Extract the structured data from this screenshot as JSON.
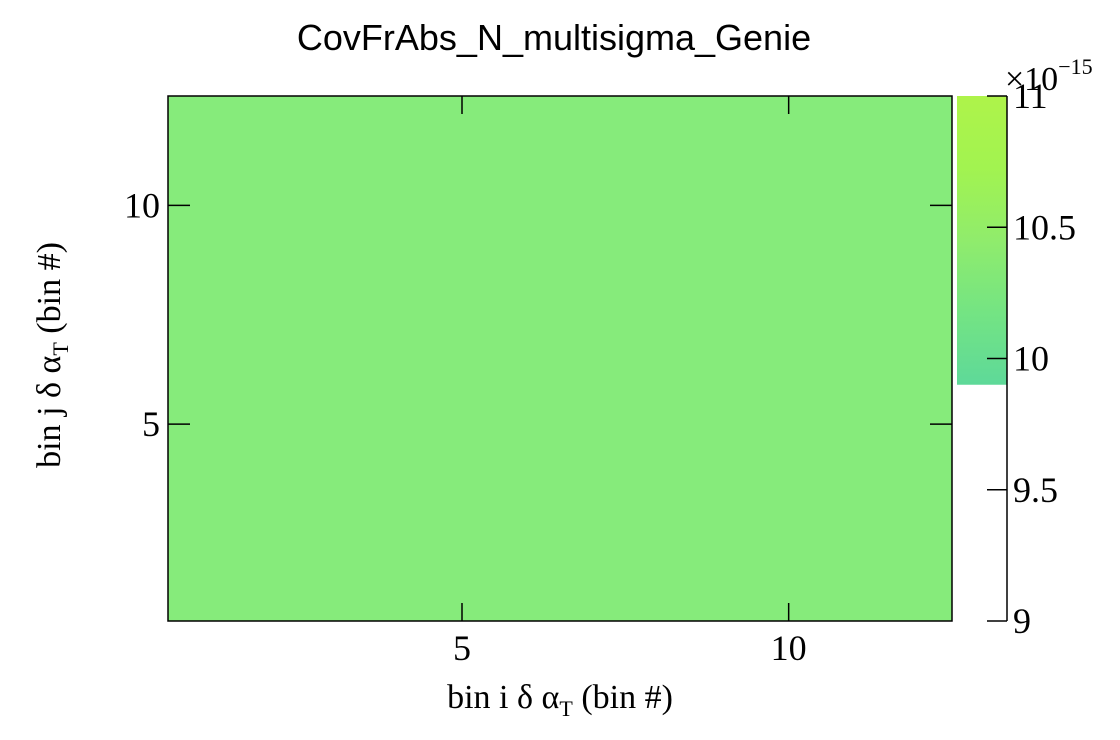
{
  "chart_data": {
    "type": "heatmap",
    "title": "CovFrAbs_N_multisigma_Genie",
    "xlabel": {
      "prefix": "bin i ",
      "delta": "δ",
      "alpha": "α",
      "sub": "T",
      "suffix": " (bin #)"
    },
    "ylabel": {
      "prefix": "bin j ",
      "delta": "δ",
      "alpha": "α",
      "sub": "T",
      "suffix": " (bin #)"
    },
    "xlim": [
      0.5,
      12.5
    ],
    "ylim": [
      0.5,
      12.5
    ],
    "x_ticks": [
      5,
      10
    ],
    "y_ticks": [
      5,
      10
    ],
    "cell_value": 10.0,
    "cell_value_exponent": -15,
    "cell_color": "#86eb7b",
    "colorbar": {
      "range": [
        9,
        11
      ],
      "ticks": [
        {
          "value": 9,
          "label": "9"
        },
        {
          "value": 9.5,
          "label": "9.5"
        },
        {
          "value": 10,
          "label": "10"
        },
        {
          "value": 10.5,
          "label": "10.5"
        },
        {
          "value": 11,
          "label": "11"
        }
      ],
      "exponent_base": "×10",
      "exponent_power": "−15",
      "palette": [
        "#5ed999",
        "#74e483",
        "#90ec6c",
        "#a2f350",
        "#aef34a"
      ],
      "palette_start": 9.9
    }
  }
}
